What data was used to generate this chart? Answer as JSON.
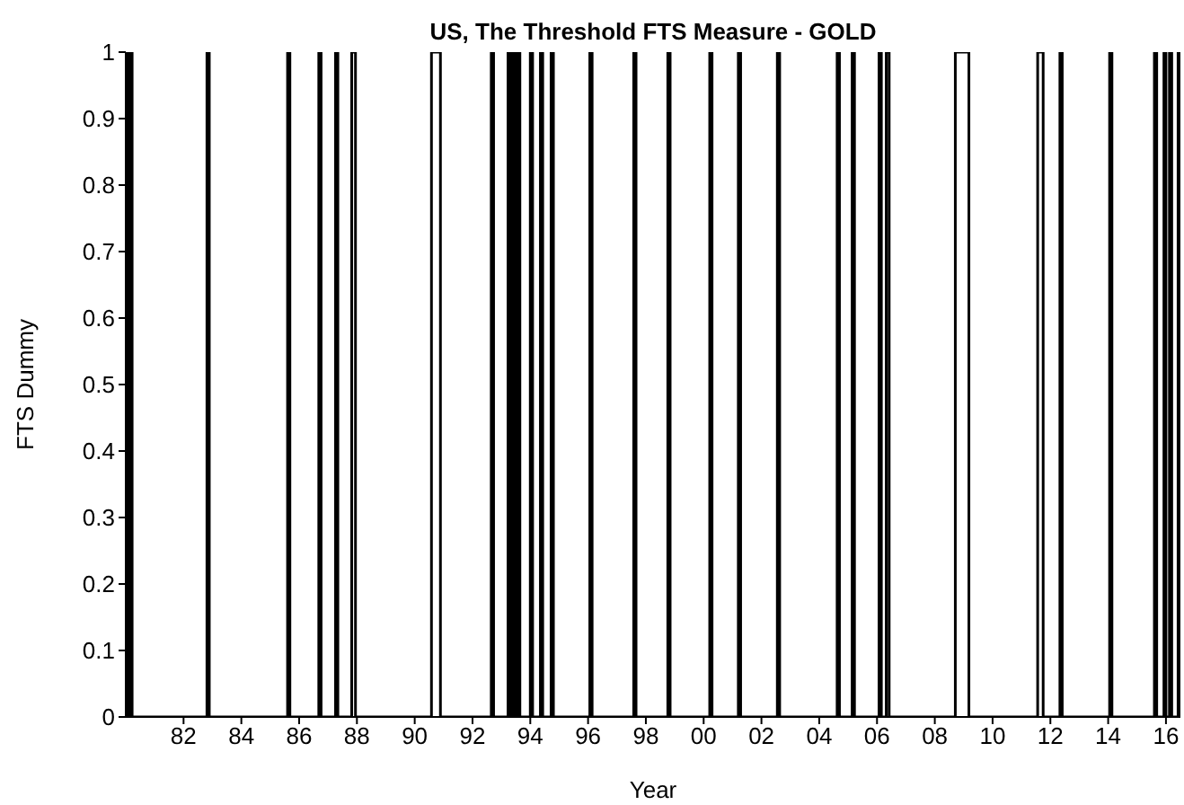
{
  "chart_data": {
    "type": "step",
    "title": "US, The Threshold FTS Measure - GOLD",
    "xlabel": "Year",
    "ylabel": "FTS Dummy",
    "xlim": [
      1980,
      2016.5
    ],
    "xticks": [
      {
        "value": 1982,
        "label": "82"
      },
      {
        "value": 1984,
        "label": "84"
      },
      {
        "value": 1986,
        "label": "86"
      },
      {
        "value": 1988,
        "label": "88"
      },
      {
        "value": 1990,
        "label": "90"
      },
      {
        "value": 1992,
        "label": "92"
      },
      {
        "value": 1994,
        "label": "94"
      },
      {
        "value": 1996,
        "label": "96"
      },
      {
        "value": 1998,
        "label": "98"
      },
      {
        "value": 2000,
        "label": "00"
      },
      {
        "value": 2002,
        "label": "02"
      },
      {
        "value": 2004,
        "label": "04"
      },
      {
        "value": 2006,
        "label": "06"
      },
      {
        "value": 2008,
        "label": "08"
      },
      {
        "value": 2010,
        "label": "10"
      },
      {
        "value": 2012,
        "label": "12"
      },
      {
        "value": 2014,
        "label": "14"
      },
      {
        "value": 2016,
        "label": "16"
      }
    ],
    "ylim": [
      0,
      1
    ],
    "yticks": [
      0,
      0.1,
      0.2,
      0.3,
      0.4,
      0.5,
      0.6,
      0.7,
      0.8,
      0.9,
      1
    ],
    "grid": false,
    "legend": false,
    "marker": "none",
    "line_style": "solid",
    "series": [
      {
        "color": "#000000",
        "x": [
          1980,
          1980.04,
          1980.1,
          1980.16,
          1980.22,
          1982.81,
          1982.89,
          1985.6,
          1985.68,
          1986.68,
          1986.76,
          1987.26,
          1987.34,
          1987.82,
          1987.95,
          1990.58,
          1990.89,
          1992.65,
          1992.73,
          1993.23,
          1993.29,
          1993.37,
          1993.43,
          1993.48,
          1993.53,
          1993.58,
          1993.64,
          1994.0,
          1994.08,
          1994.35,
          1994.43,
          1994.72,
          1994.8,
          1996.06,
          1996.14,
          1997.58,
          1997.66,
          1998.76,
          1998.84,
          2000.21,
          2000.29,
          2001.2,
          2001.28,
          2002.55,
          2002.63,
          2004.62,
          2004.7,
          2005.14,
          2005.22,
          2006.07,
          2006.15,
          2006.32,
          2006.42,
          2008.71,
          2009.18,
          2011.56,
          2011.75,
          2012.33,
          2012.41,
          2014.05,
          2014.13,
          2015.6,
          2015.68,
          2015.93,
          2016.0,
          2016.12,
          2016.2,
          2016.42,
          2016.48
        ],
        "values": [
          0,
          1,
          0,
          1,
          0,
          1,
          0,
          1,
          0,
          1,
          0,
          1,
          0,
          1,
          0,
          1,
          0,
          1,
          0,
          1,
          0,
          1,
          0,
          1,
          0,
          1,
          0,
          1,
          0,
          1,
          0,
          1,
          0,
          1,
          0,
          1,
          0,
          1,
          0,
          1,
          0,
          1,
          0,
          1,
          0,
          1,
          0,
          1,
          0,
          1,
          0,
          1,
          0,
          1,
          0,
          1,
          0,
          1,
          0,
          1,
          0,
          1,
          0,
          1,
          0,
          1,
          0,
          1,
          0
        ]
      }
    ]
  }
}
